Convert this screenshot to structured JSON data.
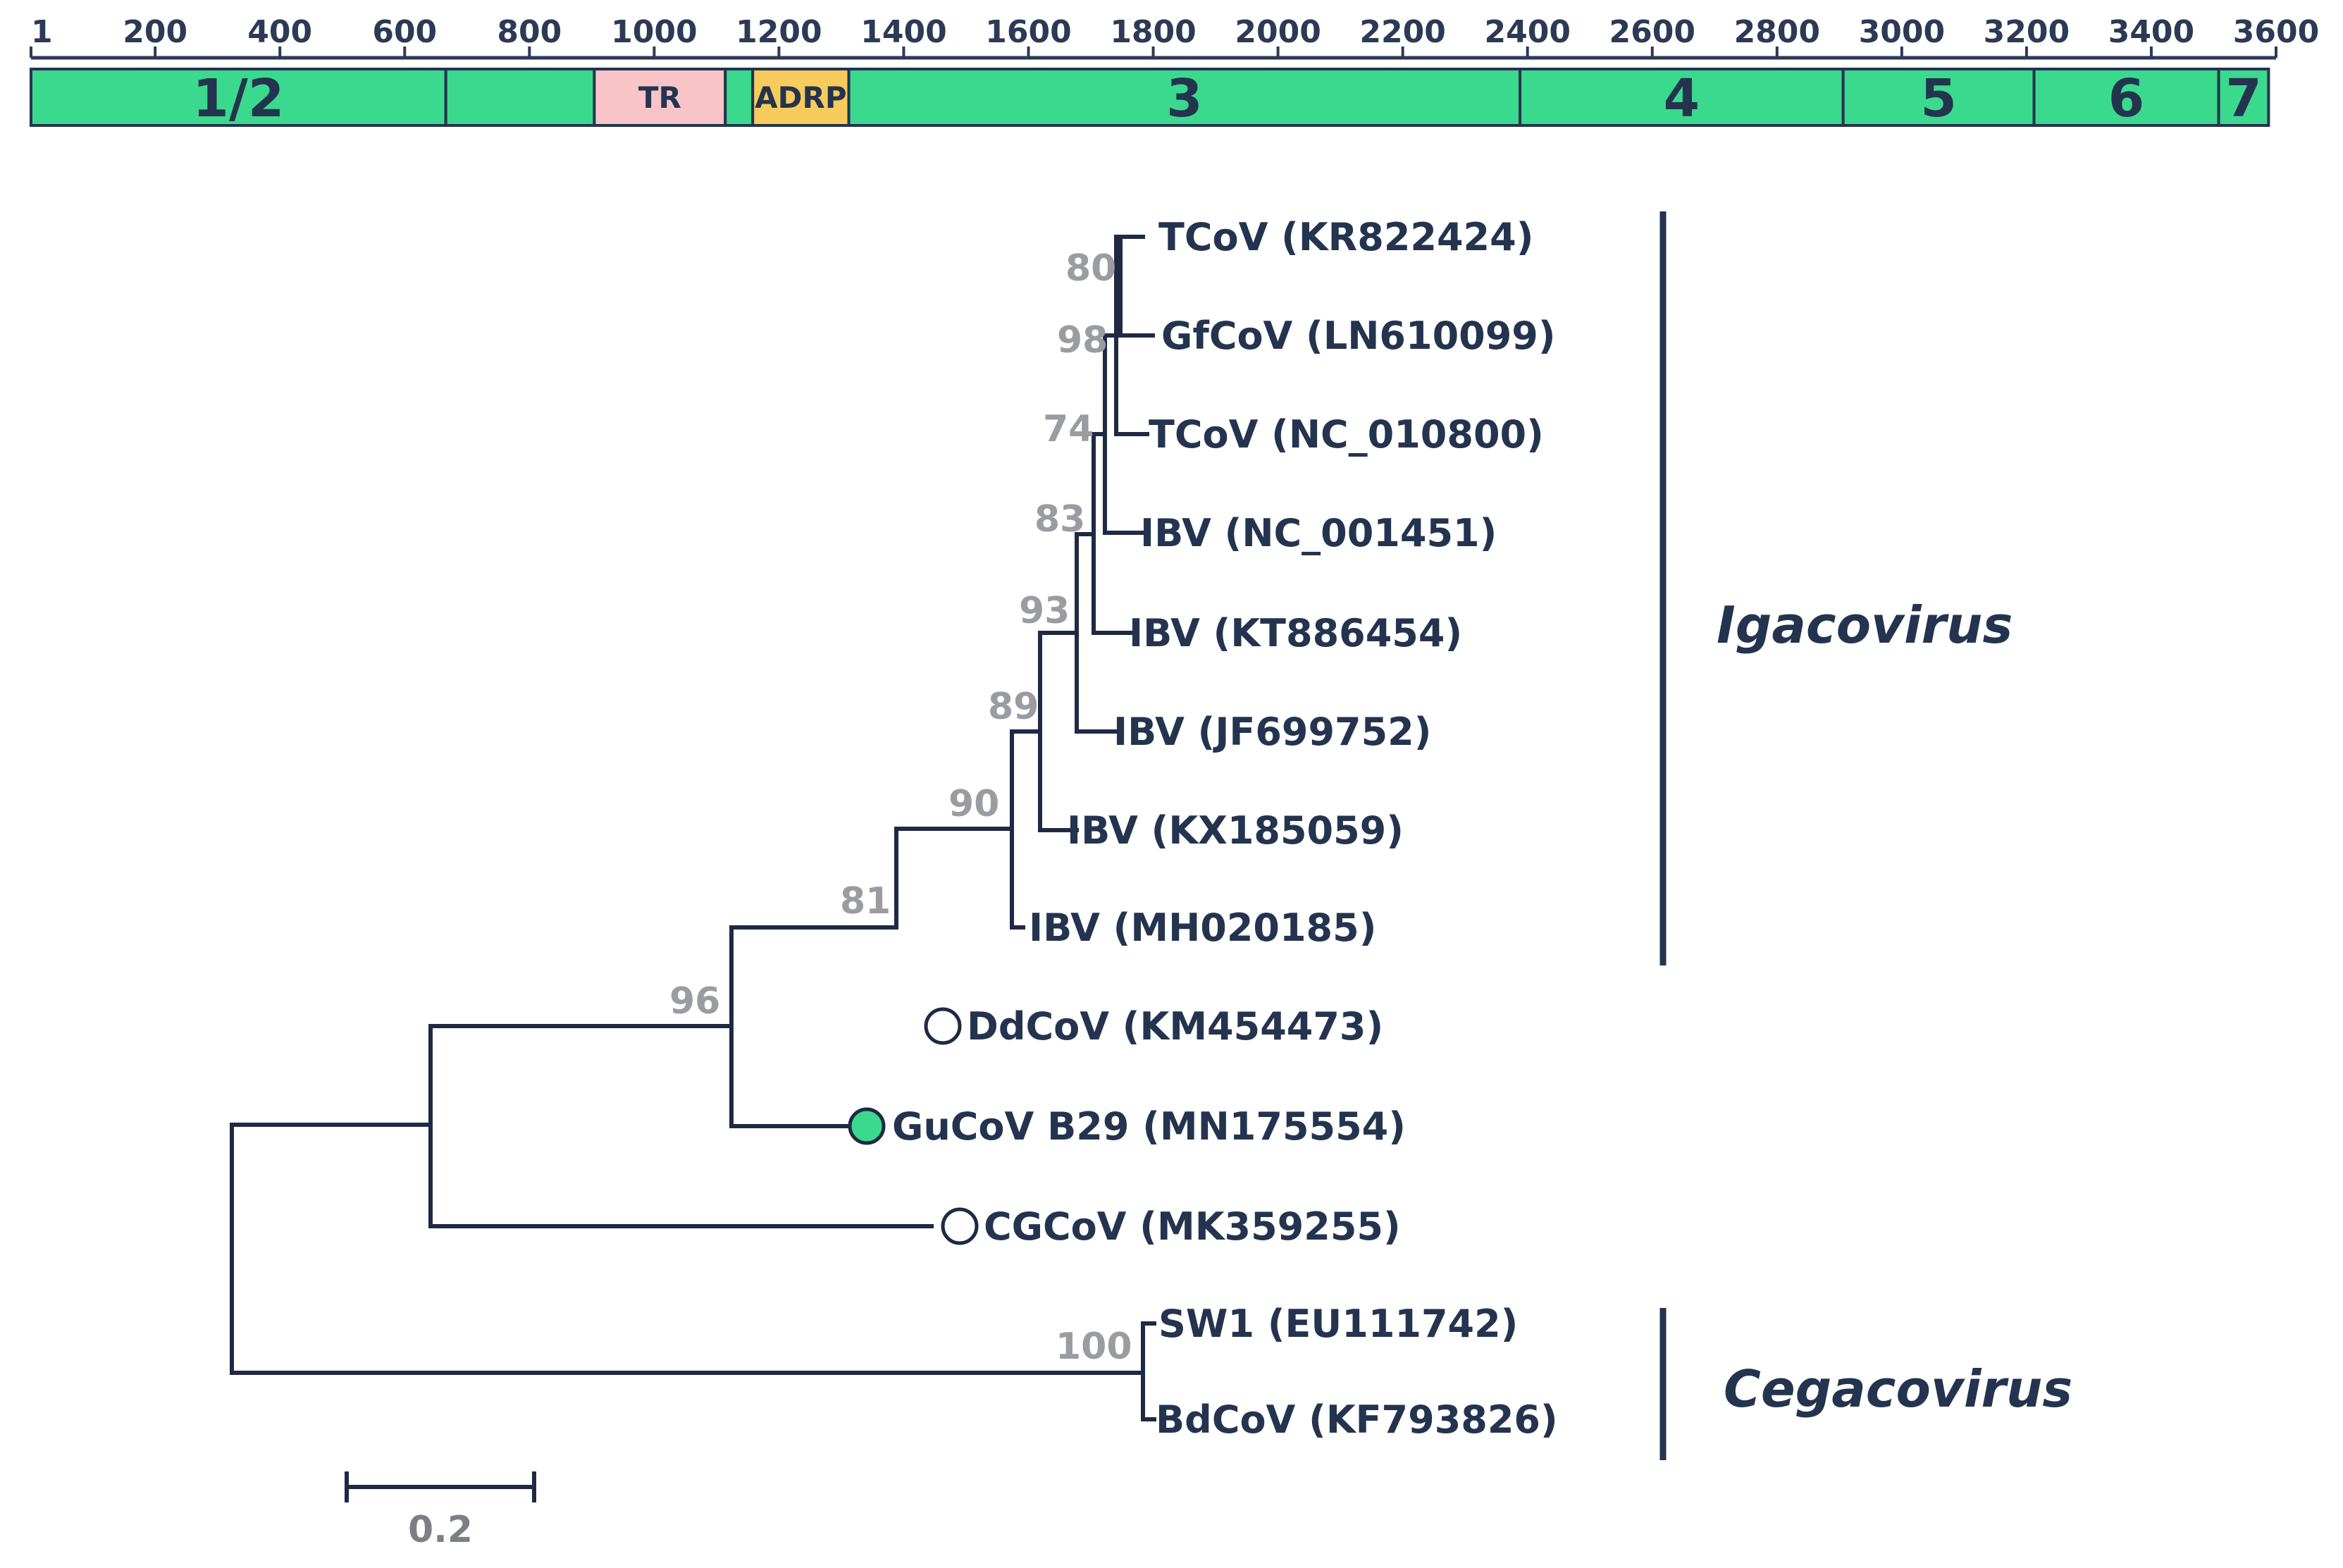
{
  "genome_map": {
    "axis_min": 1,
    "axis_max": 3600,
    "tick_labels": [
      "1",
      "200",
      "400",
      "600",
      "800",
      "1000",
      "1200",
      "1400",
      "1600",
      "1800",
      "2000",
      "2200",
      "2400",
      "2600",
      "2800",
      "3000",
      "3200",
      "3400",
      "3600"
    ],
    "segments": [
      {
        "label": "1/2",
        "start": 1,
        "end": 666,
        "color": "#3bd98e",
        "style": "big"
      },
      {
        "label": "",
        "start": 666,
        "end": 904,
        "color": "#3bd98e",
        "style": "big"
      },
      {
        "label": "TR",
        "start": 904,
        "end": 1114,
        "color": "#f8c4c8",
        "style": "small"
      },
      {
        "label": "",
        "start": 1114,
        "end": 1158,
        "color": "#3bd98e",
        "style": "big"
      },
      {
        "label": "ADRP",
        "start": 1158,
        "end": 1312,
        "color": "#f7cc5d",
        "style": "small"
      },
      {
        "label": "3",
        "start": 1312,
        "end": 2388,
        "color": "#3bd98e",
        "style": "big"
      },
      {
        "label": "4",
        "start": 2388,
        "end": 2906,
        "color": "#3bd98e",
        "style": "big"
      },
      {
        "label": "5",
        "start": 2906,
        "end": 3212,
        "color": "#3bd98e",
        "style": "big"
      },
      {
        "label": "6",
        "start": 3212,
        "end": 3508,
        "color": "#3bd98e",
        "style": "big"
      },
      {
        "label": "7",
        "start": 3508,
        "end": 3588,
        "color": "#3bd98e",
        "style": "big"
      }
    ]
  },
  "tree": {
    "taxa": [
      {
        "id": "kr822424",
        "label": "TCoV (KR822424)"
      },
      {
        "id": "ln610099",
        "label": "GfCoV (LN610099)"
      },
      {
        "id": "nc010800",
        "label": "TCoV (NC_010800)"
      },
      {
        "id": "nc001451",
        "label": "IBV (NC_001451)"
      },
      {
        "id": "kt886454",
        "label": "IBV (KT886454)"
      },
      {
        "id": "jf699752",
        "label": "IBV (JF699752)"
      },
      {
        "id": "kx185059",
        "label": "IBV (KX185059)"
      },
      {
        "id": "mh020185",
        "label": "IBV (MH020185)"
      },
      {
        "id": "km454473",
        "label": "DdCoV (KM454473)",
        "marker": "open-circle"
      },
      {
        "id": "mn175554",
        "label": "GuCoV B29 (MN175554)",
        "marker": "filled-circle"
      },
      {
        "id": "mk359255",
        "label": "CGCoV (MK359255)",
        "marker": "open-circle"
      },
      {
        "id": "eu111742",
        "label": "SW1 (EU111742)"
      },
      {
        "id": "kf793826",
        "label": "BdCoV (KF793826)"
      }
    ],
    "bootstrap_values": [
      "80",
      "98",
      "74",
      "83",
      "93",
      "89",
      "90",
      "81",
      "96",
      "100"
    ],
    "clades": [
      {
        "id": "igacovirus",
        "label": "Igacovirus"
      },
      {
        "id": "cegacovirus",
        "label": "Cegacovirus"
      }
    ],
    "scale_bar": {
      "value": 0.2,
      "label": "0.2"
    },
    "colors": {
      "filled_marker": "#3bd98e",
      "branch": "#1e2a44"
    }
  }
}
